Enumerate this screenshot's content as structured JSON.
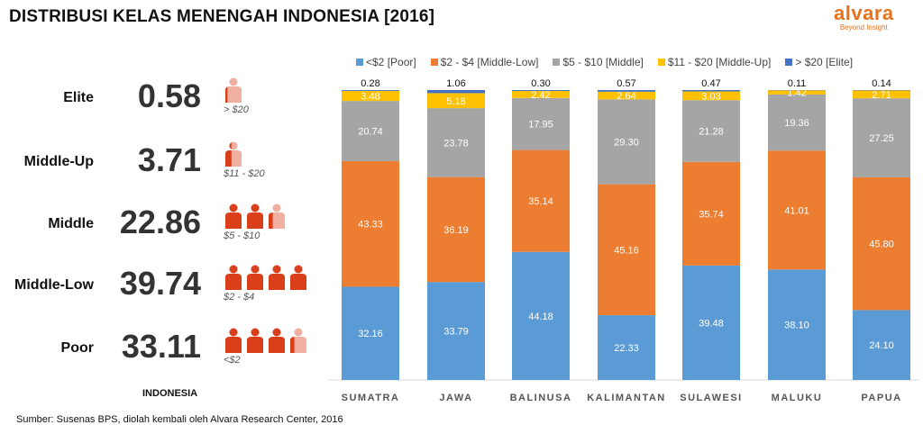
{
  "title": "DISTRIBUSI KELAS MENENGAH INDONESIA [2016]",
  "logo": {
    "name": "alvara",
    "tagline": "Beyond Insight"
  },
  "indonesia": {
    "label": "INDONESIA",
    "rows": [
      {
        "label": "Elite",
        "value": "0.58",
        "range": "> $20",
        "icons": [
          0.2
        ]
      },
      {
        "label": "Middle-Up",
        "value": "3.71",
        "range": "$11 - $20",
        "icons": [
          0.4
        ]
      },
      {
        "label": "Middle",
        "value": "22.86",
        "range": "$5 - $10",
        "icons": [
          1,
          1,
          0.3
        ]
      },
      {
        "label": "Middle-Low",
        "value": "39.74",
        "range": "$2 - $4",
        "icons": [
          1,
          1,
          1,
          1
        ]
      },
      {
        "label": "Poor",
        "value": "33.11",
        "range": "<$2",
        "icons": [
          1,
          1,
          1,
          0.3
        ]
      }
    ],
    "icon": "person-icon",
    "icon_color": "#d9401a",
    "icon_light": "#f0b0a0"
  },
  "source": "Sumber: Susenas BPS, diolah kembali oleh Alvara Research Center, 2016",
  "chart_data": {
    "type": "bar",
    "stacked": true,
    "categories": [
      "SUMATRA",
      "JAWA",
      "BALINUSA",
      "KALIMANTAN",
      "SULAWESI",
      "MALUKU",
      "PAPUA"
    ],
    "series": [
      {
        "name": "<$2 [Poor]",
        "color": "#5b9bd5",
        "values": [
          32.16,
          33.79,
          44.18,
          22.33,
          39.48,
          38.1,
          24.1
        ]
      },
      {
        "name": "$2 - $4 [Middle-Low]",
        "color": "#ed7d31",
        "values": [
          43.33,
          36.19,
          35.14,
          45.16,
          35.74,
          41.01,
          45.8
        ]
      },
      {
        "name": "$5 - $10 [Middle]",
        "color": "#a5a5a5",
        "values": [
          20.74,
          23.78,
          17.95,
          29.3,
          21.28,
          19.36,
          27.25
        ]
      },
      {
        "name": "$11 - $20 [Middle-Up]",
        "color": "#ffc000",
        "values": [
          3.48,
          5.18,
          2.42,
          2.64,
          3.03,
          1.42,
          2.71
        ]
      },
      {
        "name": "> $20 [Elite]",
        "color": "#4472c4",
        "values": [
          0.28,
          1.06,
          0.3,
          0.57,
          0.47,
          0.11,
          0.14
        ]
      }
    ],
    "ylim": [
      0,
      100
    ],
    "grid": false,
    "legend": "top"
  }
}
